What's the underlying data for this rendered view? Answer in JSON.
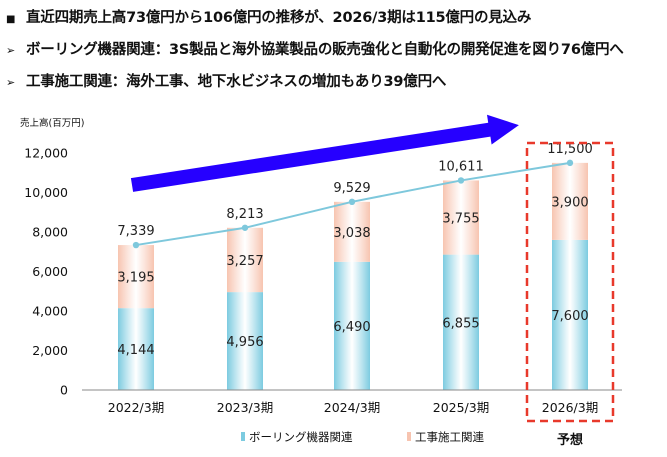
{
  "bullets": [
    {
      "marker": "■",
      "text": "直近四期売上高73億円から106億円の推移が、2026/3期は115億円の見込み"
    },
    {
      "marker": "➢",
      "text": "ボーリング機器関連：3S製品と海外協業製品の販売強化と自動化の開発促進を図り76億円へ"
    },
    {
      "marker": "➢",
      "text": "工事施工関連：海外工事、地下水ビジネスの増加もあり39億円へ"
    }
  ],
  "chart_data": {
    "type": "bar",
    "stacked": true,
    "unit_label": "売上高(百万円)",
    "categories": [
      "2022/3期",
      "2023/3期",
      "2024/3期",
      "2025/3期",
      "2026/3期"
    ],
    "series": [
      {
        "name": "ボーリング機器関連",
        "values": [
          4144,
          4956,
          6490,
          6855,
          7600
        ],
        "value_labels": [
          "4,144",
          "4,956",
          "6,490",
          "6,855",
          "7,600"
        ],
        "color": "#7ccbe0"
      },
      {
        "name": "工事施工関連",
        "values": [
          3195,
          3257,
          3038,
          3755,
          3900
        ],
        "value_labels": [
          "3,195",
          "3,257",
          "3,038",
          "3,755",
          "3,900"
        ],
        "color": "#f7c4b0"
      }
    ],
    "totals": {
      "values": [
        7339,
        8213,
        9529,
        10611,
        11500
      ],
      "labels": [
        "7,339",
        "8,213",
        "9,529",
        "10,611",
        "11,500"
      ],
      "line_color": "#7ec8dc"
    },
    "ylim": [
      0,
      12000
    ],
    "yticks": [
      0,
      2000,
      4000,
      6000,
      8000,
      10000,
      12000
    ],
    "ytick_labels": [
      "0",
      "2,000",
      "4,000",
      "6,000",
      "8,000",
      "10,000",
      "12,000"
    ],
    "grid": false,
    "legend": "bottom",
    "forecast_category": "2026/3期",
    "forecast_label": "予想",
    "forecast_box_color": "#e8392b",
    "trend_arrow_color": "#2600ff"
  }
}
